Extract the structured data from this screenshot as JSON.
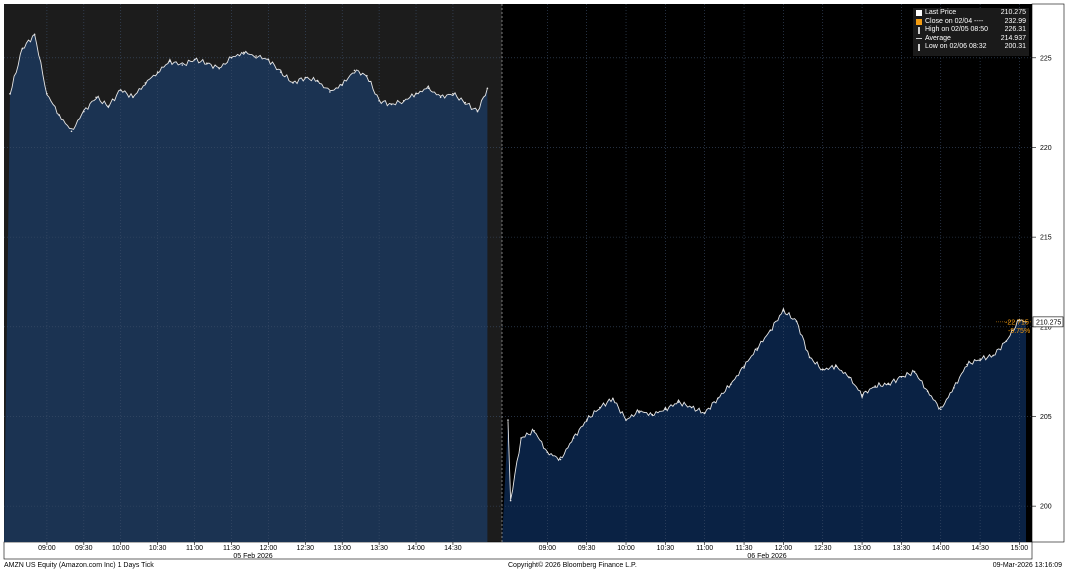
{
  "chart_data": {
    "type": "area",
    "ticker": "AMZN US Equity (Amazon.com Inc)",
    "frequency": "1 Days Tick",
    "ylim": [
      198,
      228
    ],
    "y_ticks": [
      200,
      205,
      210,
      215,
      220,
      225
    ],
    "grid": true,
    "legend_position": "top-right",
    "days": [
      {
        "date_label": "05 Feb 2026",
        "time_ticks": [
          "09:00",
          "09:30",
          "10:00",
          "10:30",
          "11:00",
          "11:30",
          "12:00",
          "12:30",
          "13:00",
          "13:30",
          "14:00",
          "14:30"
        ],
        "times": [
          "08:30",
          "08:40",
          "08:50",
          "09:00",
          "09:10",
          "09:20",
          "09:30",
          "09:40",
          "09:50",
          "10:00",
          "10:10",
          "10:20",
          "10:30",
          "10:40",
          "10:50",
          "11:00",
          "11:10",
          "11:20",
          "11:30",
          "11:40",
          "11:50",
          "12:00",
          "12:10",
          "12:20",
          "12:30",
          "12:40",
          "12:50",
          "13:00",
          "13:10",
          "13:20",
          "13:30",
          "13:40",
          "13:50",
          "14:00",
          "14:10",
          "14:20",
          "14:30",
          "14:40",
          "14:50",
          "14:58"
        ],
        "prices": [
          223.0,
          225.5,
          226.31,
          223.0,
          221.8,
          220.9,
          222.0,
          222.8,
          222.3,
          223.2,
          222.8,
          223.6,
          224.2,
          224.8,
          224.6,
          224.9,
          224.7,
          224.4,
          225.0,
          225.3,
          225.1,
          224.9,
          224.2,
          223.6,
          223.9,
          223.7,
          223.1,
          223.5,
          224.3,
          224.0,
          222.6,
          222.4,
          222.6,
          223.0,
          223.3,
          222.8,
          223.0,
          222.5,
          222.0,
          223.3
        ]
      },
      {
        "date_label": "06 Feb 2026",
        "time_ticks": [
          "09:00",
          "09:30",
          "10:00",
          "10:30",
          "11:00",
          "11:30",
          "12:00",
          "12:30",
          "13:00",
          "13:30",
          "14:00",
          "14:30",
          "15:00"
        ],
        "times": [
          "08:30",
          "08:32",
          "08:40",
          "08:50",
          "09:00",
          "09:10",
          "09:20",
          "09:30",
          "09:40",
          "09:50",
          "10:00",
          "10:10",
          "10:20",
          "10:30",
          "10:40",
          "10:50",
          "11:00",
          "11:10",
          "11:20",
          "11:30",
          "11:40",
          "11:50",
          "12:00",
          "12:10",
          "12:20",
          "12:30",
          "12:40",
          "12:50",
          "13:00",
          "13:10",
          "13:20",
          "13:30",
          "13:40",
          "13:50",
          "14:00",
          "14:10",
          "14:20",
          "14:30",
          "14:40",
          "14:50",
          "15:00",
          "15:05"
        ],
        "prices": [
          204.8,
          200.31,
          203.8,
          204.2,
          203.0,
          202.6,
          203.8,
          204.8,
          205.5,
          206.0,
          204.8,
          205.3,
          205.1,
          205.4,
          205.8,
          205.5,
          205.2,
          206.0,
          206.8,
          207.8,
          208.8,
          209.8,
          210.9,
          210.3,
          208.3,
          207.6,
          207.8,
          207.2,
          206.2,
          206.7,
          206.8,
          207.2,
          207.5,
          206.4,
          205.4,
          206.6,
          207.9,
          208.2,
          208.4,
          209.2,
          210.4,
          210.275
        ]
      }
    ],
    "last_price_tag": "210.275",
    "change_tag": "-22.715",
    "change_pct_tag": "-9.75%",
    "legend": [
      {
        "label": "Last Price",
        "value": "210.275",
        "color": "#ffffff"
      },
      {
        "label": "Close on 02/04 ----",
        "value": "232.99",
        "color": "#f39c12"
      },
      {
        "label": "High on 02/05 08:50",
        "value": "226.31",
        "color": "#ffffff"
      },
      {
        "label": "Average",
        "value": "214.937",
        "color": "#ffffff"
      },
      {
        "label": "Low on 02/06 08:32",
        "value": "200.31",
        "color": "#ffffff"
      }
    ],
    "colors": {
      "background_prior_day": "#1c1c1c",
      "background_current_day": "#000000",
      "fill_prior_day": "#1b3352",
      "fill_current_day": "#0a2244",
      "line": "#e6e6e6",
      "grid": "#3d4f6a",
      "accent": "#f39c12"
    }
  },
  "footer": {
    "left": "AMZN US Equity (Amazon.com Inc) 1 Days Tick",
    "center": "Copyright© 2026 Bloomberg Finance L.P.",
    "right": "09-Mar-2026 13:16:09"
  }
}
